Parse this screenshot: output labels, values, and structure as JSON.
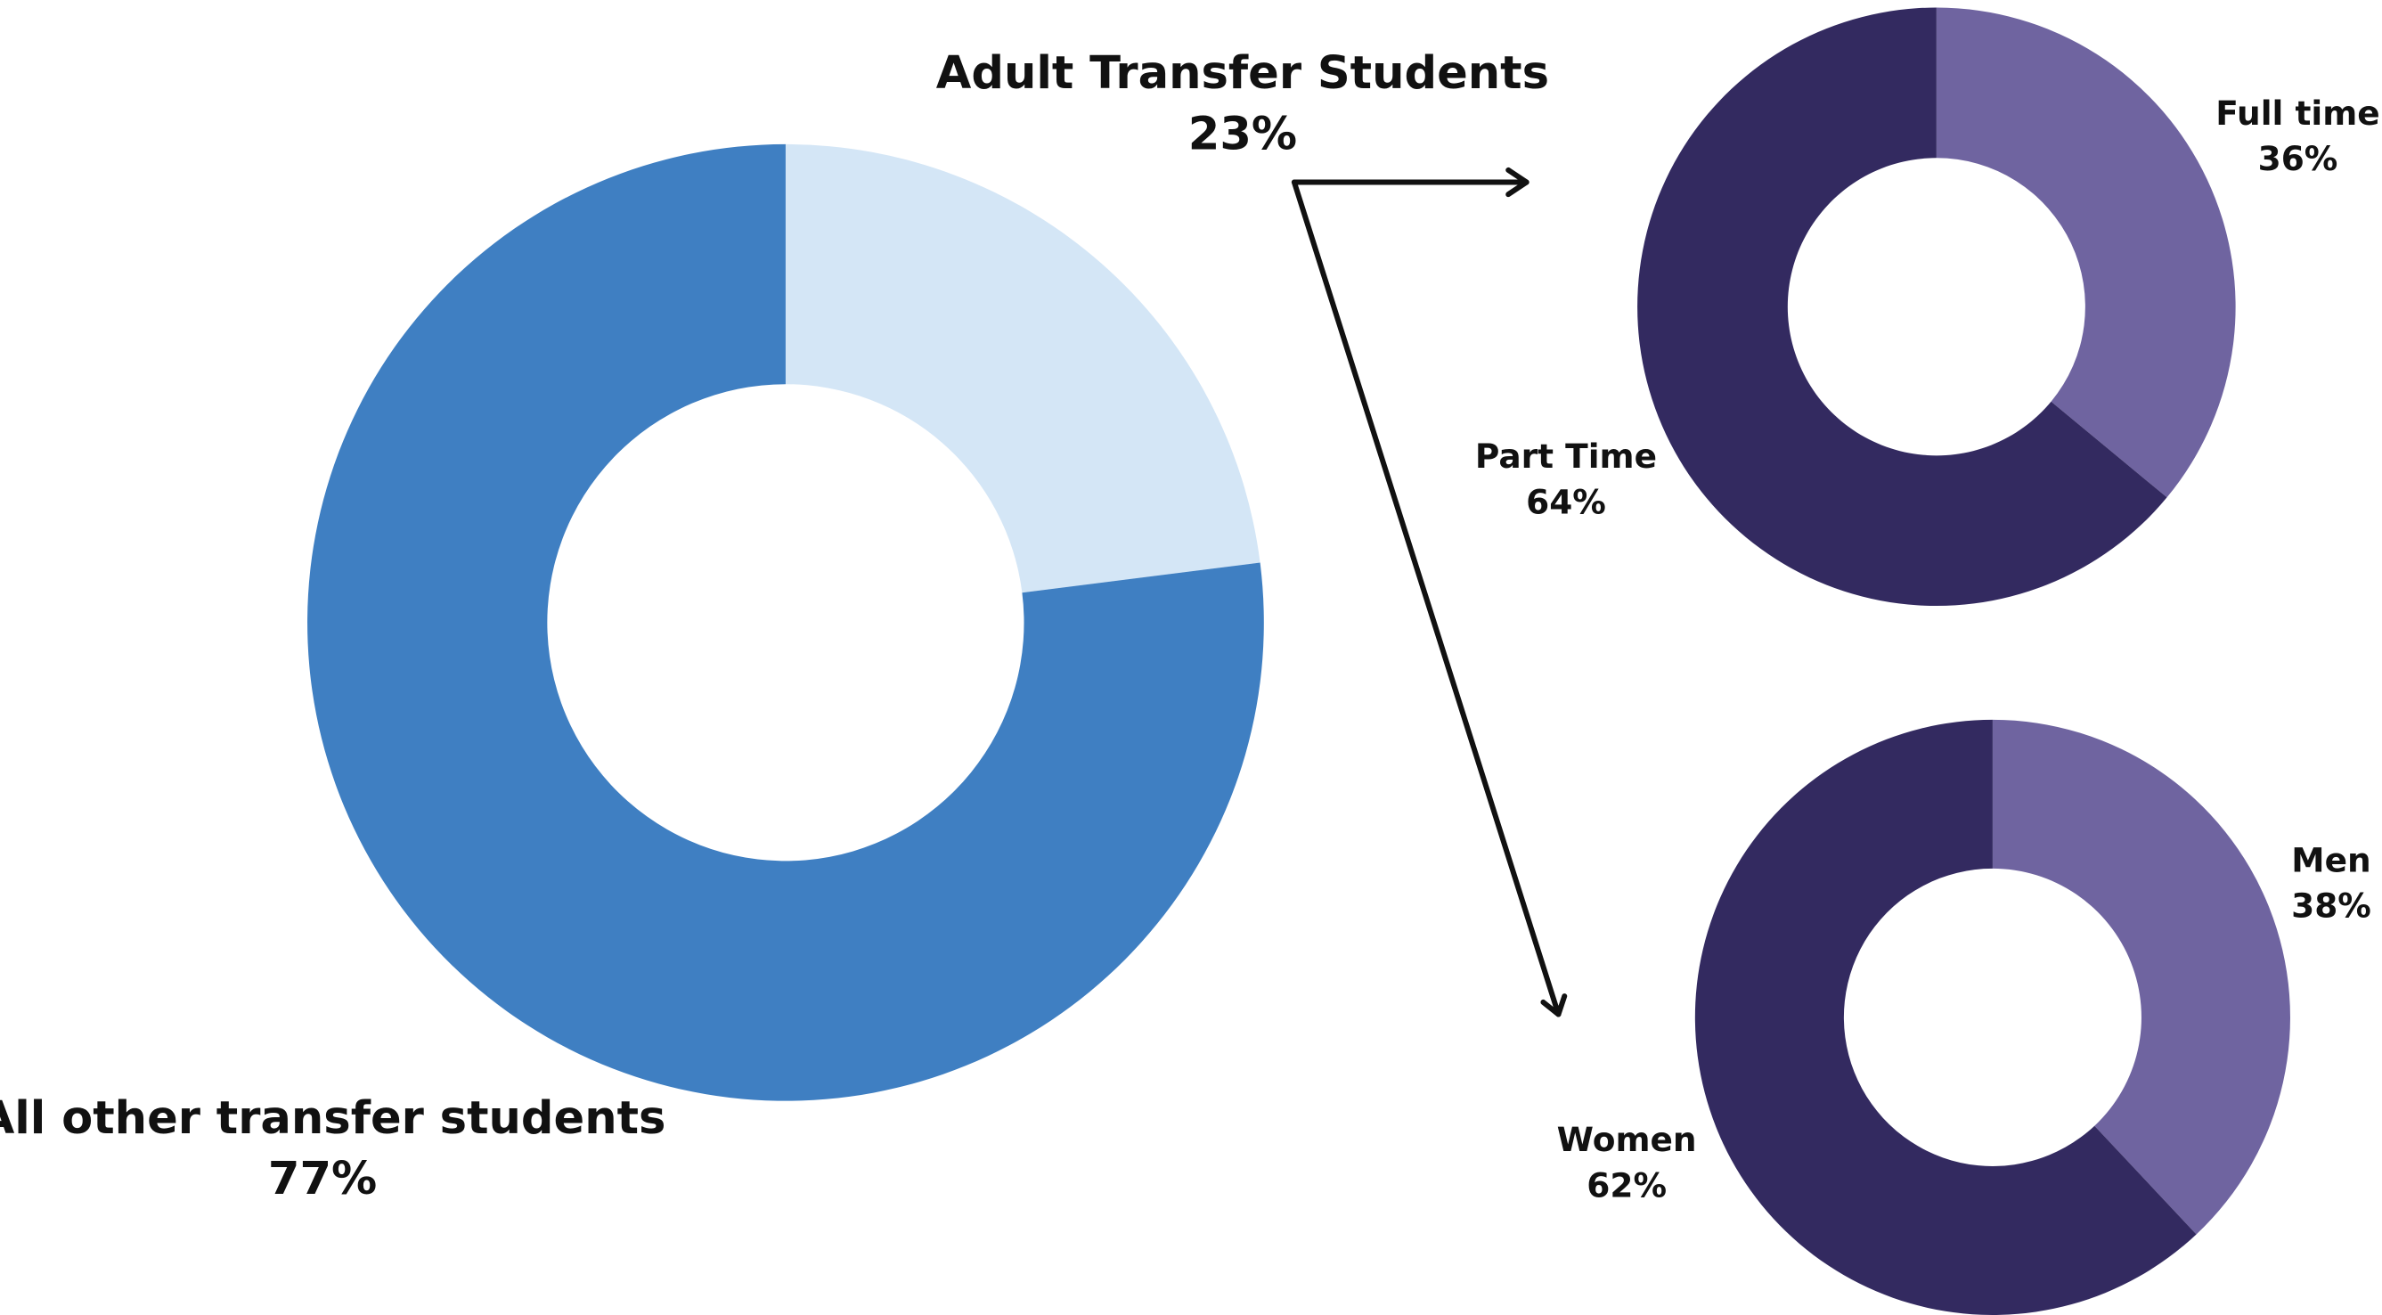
{
  "chart_data": [
    {
      "type": "donut",
      "categories": [
        "Adult Transfer Students",
        "All other transfer students"
      ],
      "values": [
        23,
        77
      ],
      "value_labels": [
        "23%",
        "77%"
      ],
      "colors": [
        "#d4e6f6",
        "#3f7fc2"
      ]
    },
    {
      "type": "donut",
      "categories": [
        "Full time",
        "Part Time"
      ],
      "values": [
        36,
        64
      ],
      "value_labels": [
        "36%",
        "64%"
      ],
      "colors": [
        "#6f64a0",
        "#332a60"
      ]
    },
    {
      "type": "donut",
      "categories": [
        "Men",
        "Women"
      ],
      "values": [
        38,
        62
      ],
      "value_labels": [
        "38%",
        "62%"
      ],
      "colors": [
        "#6f64a0",
        "#332a60"
      ]
    }
  ]
}
